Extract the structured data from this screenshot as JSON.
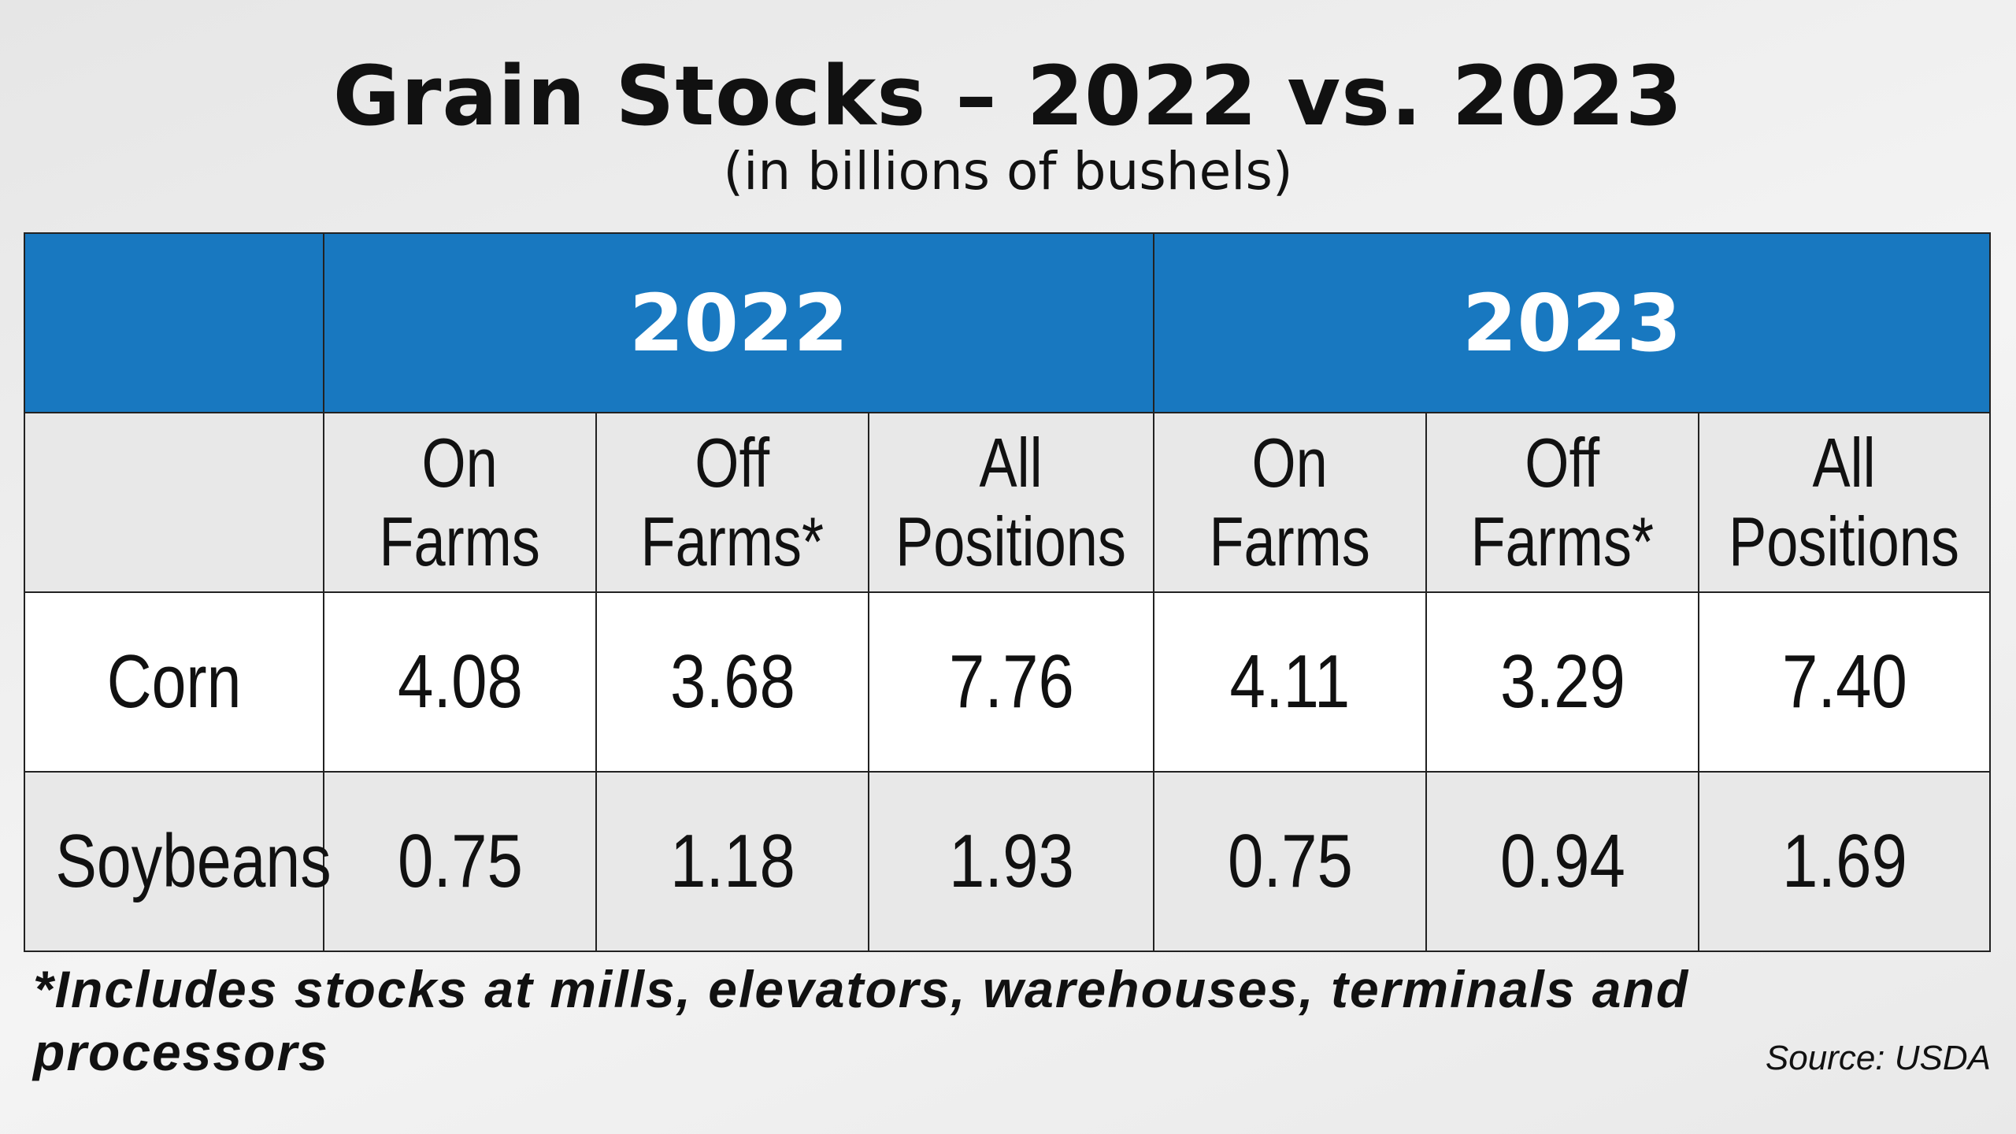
{
  "chart_data": {
    "type": "table",
    "title": "Grain Stocks – 2022 vs. 2023",
    "subtitle": "(in billions of bushels)",
    "years": [
      "2022",
      "2023"
    ],
    "columns": [
      {
        "line1": "On",
        "line2": "Farms"
      },
      {
        "line1": "Off",
        "line2": "Farms*"
      },
      {
        "line1": "All",
        "line2": "Positions"
      },
      {
        "line1": "On",
        "line2": "Farms"
      },
      {
        "line1": "Off",
        "line2": "Farms*"
      },
      {
        "line1": "All",
        "line2": "Positions"
      }
    ],
    "rows": [
      {
        "label": "Corn",
        "values": [
          "4.08",
          "3.68",
          "7.76",
          "4.11",
          "3.29",
          "7.40"
        ]
      },
      {
        "label": "Soybeans",
        "values": [
          "0.75",
          "1.18",
          "1.93",
          "0.75",
          "0.94",
          "1.69"
        ]
      }
    ],
    "footnote": "*Includes stocks at mills, elevators, warehouses, terminals and processors",
    "source": "Source: USDA"
  },
  "colors": {
    "header_blue": "#1878c0",
    "subheader_gray": "#e8e8e8",
    "row_white": "#ffffff",
    "row_gray": "#e8e8e8"
  }
}
